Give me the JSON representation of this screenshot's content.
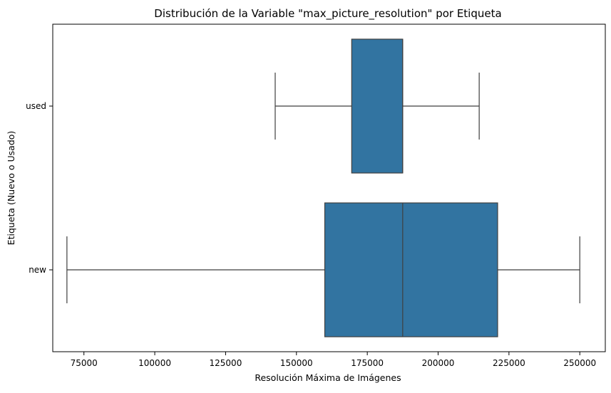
{
  "chart_data": {
    "type": "boxplot",
    "orientation": "horizontal",
    "title": "Distribución de la Variable \"max_picture_resolution\" por Etiqueta",
    "xlabel": "Resolución Máxima de Imágenes",
    "ylabel": "Etiqueta (Nuevo o Usado)",
    "xlim": [
      64000,
      259000
    ],
    "xticks": [
      75000,
      100000,
      125000,
      150000,
      175000,
      200000,
      225000,
      250000
    ],
    "categories": [
      "used",
      "new"
    ],
    "boxes": [
      {
        "category": "used",
        "whisker_low": 142500,
        "q1": 169500,
        "median": 187500,
        "q3": 187500,
        "whisker_high": 214500
      },
      {
        "category": "new",
        "whisker_low": 69000,
        "q1": 160000,
        "median": 187500,
        "q3": 221000,
        "whisker_high": 250000
      }
    ],
    "box_color": "#3274a1",
    "line_color": "#3f3f3f",
    "grid": false
  }
}
